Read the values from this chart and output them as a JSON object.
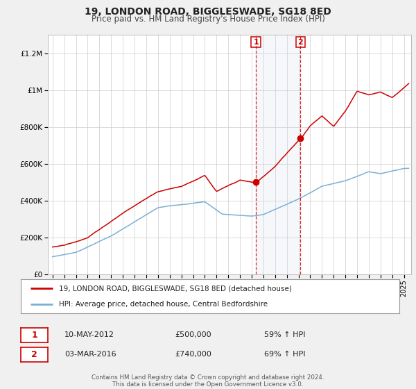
{
  "title": "19, LONDON ROAD, BIGGLESWADE, SG18 8ED",
  "subtitle": "Price paid vs. HM Land Registry's House Price Index (HPI)",
  "legend1": "19, LONDON ROAD, BIGGLESWADE, SG18 8ED (detached house)",
  "legend2": "HPI: Average price, detached house, Central Bedfordshire",
  "annotation1_label": "1",
  "annotation1_date": "10-MAY-2012",
  "annotation1_price": "£500,000",
  "annotation1_hpi": "59% ↑ HPI",
  "annotation1_year": 2012.36,
  "annotation1_value": 500000,
  "annotation2_label": "2",
  "annotation2_date": "03-MAR-2016",
  "annotation2_price": "£740,000",
  "annotation2_hpi": "69% ↑ HPI",
  "annotation2_year": 2016.17,
  "annotation2_value": 740000,
  "ylim": [
    0,
    1300000
  ],
  "xlim_start": 1994.6,
  "xlim_end": 2025.6,
  "red_color": "#cc0000",
  "blue_color": "#7ab0d4",
  "background_color": "#f0f0f0",
  "plot_bg_color": "#ffffff",
  "shade_color": "#c8d8ec",
  "footer_line1": "Contains HM Land Registry data © Crown copyright and database right 2024.",
  "footer_line2": "This data is licensed under the Open Government Licence v3.0.",
  "yticks": [
    0,
    200000,
    400000,
    600000,
    800000,
    1000000,
    1200000
  ],
  "ytick_labels": [
    "£0",
    "£200K",
    "£400K",
    "£600K",
    "£800K",
    "£1M",
    "£1.2M"
  ]
}
